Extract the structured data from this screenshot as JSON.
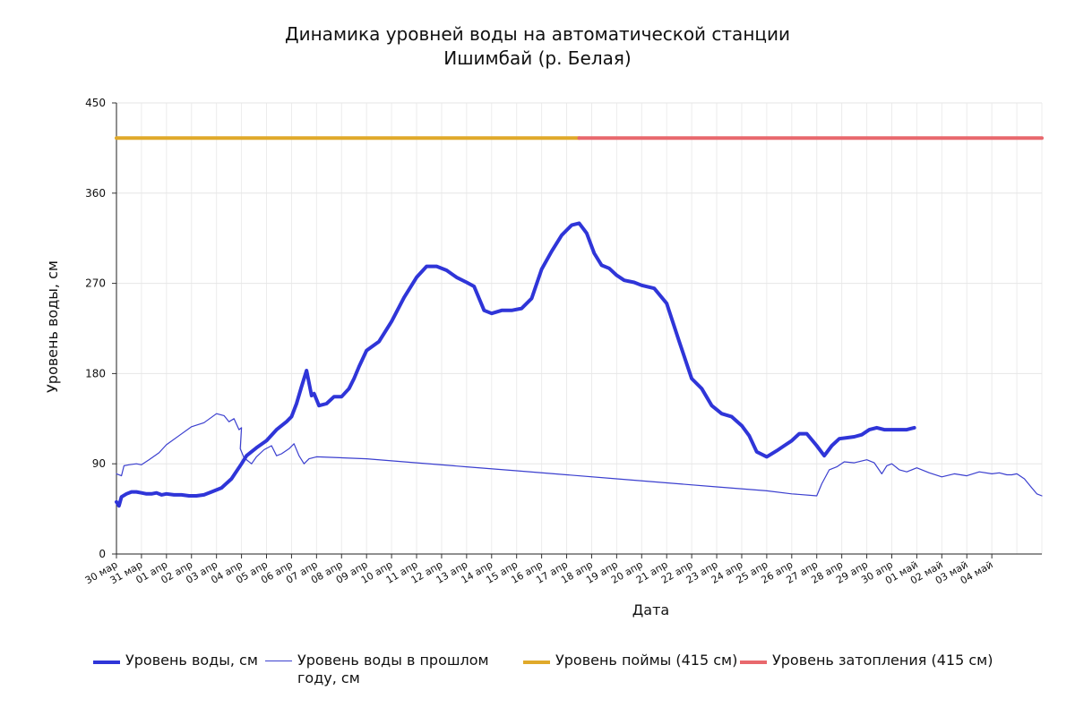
{
  "chart_data": {
    "type": "line",
    "title": "Динамика уровней воды на автоматической станции",
    "subtitle": "Ишимбай (р. Белая)",
    "xlabel": "Дата",
    "ylabel": "Уровень воды, см",
    "ylim": [
      0,
      450
    ],
    "yticks": [
      0,
      90,
      180,
      270,
      360,
      450
    ],
    "xlim": [
      0,
      37
    ],
    "x_tick_labels": [
      "30 мар",
      "31 мар",
      "01 апр",
      "02 апр",
      "03 апр",
      "04 апр",
      "05 апр",
      "06 апр",
      "07 апр",
      "08 апр",
      "09 апр",
      "10 апр",
      "11 апр",
      "12 апр",
      "13 апр",
      "14 апр",
      "15 апр",
      "16 апр",
      "17 апр",
      "18 апр",
      "19 апр",
      "20 апр",
      "21 апр",
      "22 апр",
      "23 апр",
      "24 апр",
      "25 апр",
      "26 апр",
      "27 апр",
      "28 апр",
      "29 апр",
      "30 апр",
      "01 май",
      "02 май",
      "03 май",
      "04 май"
    ],
    "grid": true,
    "legend_position": "bottom",
    "series": [
      {
        "name": "Уровень воды, см",
        "color": "#2f35d8",
        "width": 4,
        "x": [
          0,
          0.1,
          0.2,
          0.4,
          0.6,
          0.8,
          1.0,
          1.2,
          1.4,
          1.6,
          1.8,
          2.0,
          2.3,
          2.6,
          2.9,
          3.2,
          3.5,
          3.8,
          4.2,
          4.6,
          5.0,
          5.2,
          5.6,
          6.0,
          6.4,
          6.8,
          7.0,
          7.2,
          7.4,
          7.6,
          7.8,
          7.9,
          8.1,
          8.4,
          8.7,
          9.0,
          9.3,
          9.5,
          9.7,
          10.0,
          10.5,
          11.0,
          11.5,
          12.0,
          12.4,
          12.8,
          13.2,
          13.6,
          14.0,
          14.3,
          14.7,
          15.0,
          15.4,
          15.8,
          16.2,
          16.6,
          17.0,
          17.4,
          17.8,
          18.2,
          18.5,
          18.8,
          19.1,
          19.4,
          19.7,
          20.0,
          20.3,
          20.7,
          21.0,
          21.5,
          22.0,
          22.5,
          23.0,
          23.4,
          23.8,
          24.2,
          24.6,
          25.0,
          25.3,
          25.6,
          26.0,
          26.4,
          26.7,
          27.0,
          27.3,
          27.6,
          28.0,
          28.3,
          28.6,
          28.9,
          29.2,
          29.5,
          29.8,
          30.1,
          30.4,
          30.7,
          31.0,
          31.3,
          31.6,
          31.9
        ],
        "y": [
          52,
          48,
          57,
          60,
          62,
          62,
          61,
          60,
          60,
          61,
          59,
          60,
          59,
          59,
          58,
          58,
          59,
          62,
          66,
          75,
          90,
          98,
          106,
          113,
          124,
          132,
          137,
          150,
          167,
          183,
          158,
          160,
          148,
          150,
          157,
          157,
          165,
          175,
          187,
          203,
          212,
          232,
          256,
          276,
          287,
          287,
          283,
          276,
          271,
          267,
          243,
          240,
          243,
          243,
          245,
          255,
          284,
          302,
          318,
          328,
          330,
          320,
          300,
          288,
          285,
          278,
          273,
          271,
          268,
          265,
          250,
          212,
          175,
          165,
          148,
          140,
          137,
          128,
          118,
          102,
          97,
          103,
          108,
          113,
          120,
          120,
          108,
          98,
          108,
          115,
          116,
          117,
          119,
          124,
          126,
          124,
          124,
          124,
          124,
          126
        ],
        "y_clip_end": 31.9
      },
      {
        "name": "Уровень воды в прошлом году, см",
        "color": "#3b3fcf",
        "width": 1.2,
        "x": [
          0,
          0.2,
          0.3,
          0.5,
          0.8,
          1.0,
          1.3,
          1.7,
          2.0,
          2.5,
          3.0,
          3.5,
          4.0,
          4.3,
          4.5,
          4.7,
          4.9,
          5.0,
          4.95,
          5.1,
          5.4,
          5.6,
          5.9,
          6.2,
          6.4,
          6.6,
          6.9,
          7.1,
          7.3,
          7.5,
          7.7,
          8.0,
          10.0,
          12.0,
          14.0,
          16.0,
          18.0,
          20.0,
          22.0,
          24.0,
          26.0,
          27.0,
          28.0,
          28.2,
          28.5,
          28.8,
          29.1,
          29.5,
          30.0,
          30.3,
          30.6,
          30.8,
          31.0,
          31.3,
          31.6,
          32.0,
          32.5,
          33.0,
          33.5,
          34.0,
          34.5,
          35.0,
          35.3,
          35.6,
          35.8,
          36.0,
          36.3,
          36.6,
          36.8,
          37.0
        ],
        "y": [
          80,
          78,
          88,
          89,
          90,
          89,
          94,
          101,
          109,
          118,
          127,
          131,
          140,
          138,
          132,
          135,
          124,
          126,
          105,
          96,
          90,
          97,
          104,
          108,
          98,
          100,
          105,
          110,
          98,
          90,
          95,
          97,
          95,
          91,
          87,
          83,
          79,
          75,
          71,
          67,
          63,
          60,
          58,
          70,
          84,
          87,
          92,
          91,
          94,
          91,
          80,
          88,
          90,
          84,
          82,
          86,
          81,
          77,
          80,
          78,
          82,
          80,
          81,
          79,
          79,
          80,
          75,
          66,
          60,
          58
        ],
        "y_visible_from_x": 0
      },
      {
        "name": "Уровень поймы (415 см)",
        "color": "#e0a92a",
        "width": 4,
        "x": [
          0,
          18.5
        ],
        "y": [
          415,
          415
        ]
      },
      {
        "name": "Уровень затопления (415 см)",
        "color": "#e8686d",
        "width": 4,
        "x": [
          18.5,
          37
        ],
        "y": [
          415,
          415
        ]
      }
    ]
  }
}
